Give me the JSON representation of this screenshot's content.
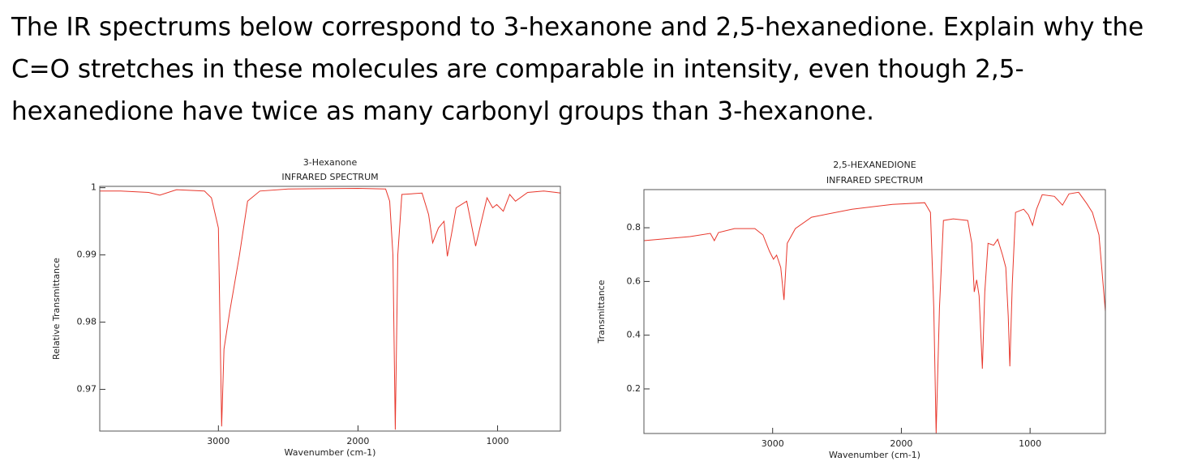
{
  "question": [
    "The IR spectrums below correspond to 3-hexanone and 2,5-hexanedione. Explain why the",
    "C=O stretches in these molecules are comparable in intensity, even though 2,5-",
    "hexanedione have twice as many carbonyl groups than 3-hexanone."
  ],
  "chart_data": [
    {
      "type": "line",
      "title": "3-Hexanone",
      "subtitle": "INFRARED SPECTRUM",
      "x_label": "Wavenumber (cm-1)",
      "y_label": "Relative Transmittance",
      "color": "#e8372c",
      "xlim": [
        3850,
        550
      ],
      "ylim": [
        0.9638,
        1.0002
      ],
      "xticks": [
        3000,
        2000,
        1000
      ],
      "yticks": [
        0.97,
        0.98,
        0.99,
        1
      ],
      "x": [
        3850,
        3700,
        3500,
        3420,
        3300,
        3100,
        3050,
        3000,
        2985,
        2977,
        2960,
        2919,
        2890,
        2849,
        2791,
        2703,
        2500,
        2000,
        1802,
        1773,
        1750,
        1733,
        1715,
        1686,
        1541,
        1494,
        1465,
        1424,
        1384,
        1360,
        1331,
        1297,
        1221,
        1192,
        1157,
        1116,
        1076,
        1035,
        1006,
        959,
        913,
        872,
        785,
        669,
        581,
        550
      ],
      "values": [
        0.9995,
        0.9995,
        0.9993,
        0.9989,
        0.9997,
        0.9995,
        0.9985,
        0.994,
        0.975,
        0.9645,
        0.976,
        0.9815,
        0.985,
        0.99,
        0.998,
        0.9995,
        0.9998,
        0.9999,
        0.9998,
        0.998,
        0.99,
        0.964,
        0.99,
        0.999,
        0.9992,
        0.996,
        0.9918,
        0.994,
        0.995,
        0.9898,
        0.993,
        0.997,
        0.998,
        0.995,
        0.9913,
        0.995,
        0.9985,
        0.997,
        0.9975,
        0.9965,
        0.999,
        0.998,
        0.9993,
        0.9995,
        0.9993,
        0.9992
      ]
    },
    {
      "type": "line",
      "title": "2,5-HEXANEDIONE",
      "subtitle": "INFRARED SPECTRUM",
      "x_label": "Wavenumber (cm-1)",
      "y_label": "Transmittance",
      "color": "#e8372c",
      "xlim": [
        4000,
        415
      ],
      "ylim": [
        0.034,
        0.942
      ],
      "xticks": [
        3000,
        2000,
        1000
      ],
      "yticks": [
        0.2,
        0.4,
        0.6,
        0.8
      ],
      "x": [
        4000,
        3642,
        3484,
        3453,
        3421,
        3296,
        3138,
        3075,
        3025,
        2994,
        2969,
        2937,
        2912,
        2887,
        2824,
        2698,
        2384,
        2069,
        1818,
        1774,
        1748,
        1730,
        1704,
        1673,
        1597,
        1484,
        1453,
        1434,
        1415,
        1396,
        1371,
        1352,
        1327,
        1283,
        1252,
        1214,
        1189,
        1170,
        1157,
        1138,
        1113,
        1050,
        1013,
        981,
        950,
        906,
        811,
        748,
        698,
        623,
        560,
        516,
        465,
        415
      ],
      "values": [
        0.752,
        0.767,
        0.779,
        0.752,
        0.782,
        0.797,
        0.797,
        0.773,
        0.713,
        0.683,
        0.698,
        0.652,
        0.531,
        0.742,
        0.797,
        0.839,
        0.869,
        0.887,
        0.893,
        0.857,
        0.501,
        0.035,
        0.501,
        0.827,
        0.833,
        0.827,
        0.742,
        0.561,
        0.606,
        0.546,
        0.275,
        0.561,
        0.742,
        0.735,
        0.757,
        0.698,
        0.652,
        0.471,
        0.284,
        0.591,
        0.857,
        0.869,
        0.848,
        0.809,
        0.869,
        0.923,
        0.917,
        0.884,
        0.926,
        0.932,
        0.89,
        0.857,
        0.773,
        0.488
      ]
    }
  ]
}
